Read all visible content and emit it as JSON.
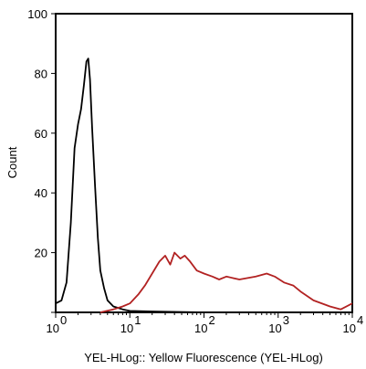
{
  "chart_data": {
    "type": "line",
    "title": "",
    "xlabel": "YEL-HLog:: Yellow Fluorescence (YEL-HLog)",
    "ylabel": "Count",
    "x_scale": "log",
    "xlim": [
      1,
      10000
    ],
    "ylim": [
      0,
      100
    ],
    "x_tick_labels": [
      {
        "base": "10",
        "exp": "0"
      },
      {
        "base": "10",
        "exp": "1"
      },
      {
        "base": "10",
        "exp": "2"
      },
      {
        "base": "10",
        "exp": "3"
      },
      {
        "base": "10",
        "exp": "4"
      }
    ],
    "x_tick_values": [
      1,
      10,
      100,
      1000,
      10000
    ],
    "y_ticks": [
      0,
      20,
      40,
      60,
      80,
      100
    ],
    "y_tick_labels": [
      "20",
      "40",
      "60",
      "80",
      "100"
    ],
    "grid": false,
    "series": [
      {
        "color": "#000000",
        "points": [
          [
            1.0,
            3
          ],
          [
            1.2,
            4
          ],
          [
            1.4,
            10
          ],
          [
            1.6,
            30
          ],
          [
            1.8,
            55
          ],
          [
            2.0,
            63
          ],
          [
            2.2,
            68
          ],
          [
            2.4,
            76
          ],
          [
            2.6,
            84
          ],
          [
            2.75,
            85
          ],
          [
            2.9,
            78
          ],
          [
            3.1,
            62
          ],
          [
            3.4,
            42
          ],
          [
            3.7,
            25
          ],
          [
            4.0,
            14
          ],
          [
            4.5,
            8
          ],
          [
            5.0,
            4
          ],
          [
            6.0,
            2
          ],
          [
            8.0,
            1
          ],
          [
            10.0,
            0.5
          ],
          [
            20.0,
            0.3
          ],
          [
            100.0,
            0
          ]
        ]
      },
      {
        "color": "#b22222",
        "points": [
          [
            4,
            0
          ],
          [
            6,
            1
          ],
          [
            8,
            2
          ],
          [
            10,
            3
          ],
          [
            13,
            6
          ],
          [
            16,
            9
          ],
          [
            20,
            13
          ],
          [
            25,
            17
          ],
          [
            30,
            19
          ],
          [
            35,
            16
          ],
          [
            40,
            20
          ],
          [
            48,
            18
          ],
          [
            55,
            19
          ],
          [
            65,
            17
          ],
          [
            80,
            14
          ],
          [
            100,
            13
          ],
          [
            130,
            12
          ],
          [
            160,
            11
          ],
          [
            200,
            12
          ],
          [
            300,
            11
          ],
          [
            500,
            12
          ],
          [
            700,
            13
          ],
          [
            900,
            12
          ],
          [
            1200,
            10
          ],
          [
            1600,
            9
          ],
          [
            2000,
            7
          ],
          [
            3000,
            4
          ],
          [
            5000,
            2
          ],
          [
            7000,
            1
          ],
          [
            10000,
            3
          ]
        ]
      }
    ]
  }
}
